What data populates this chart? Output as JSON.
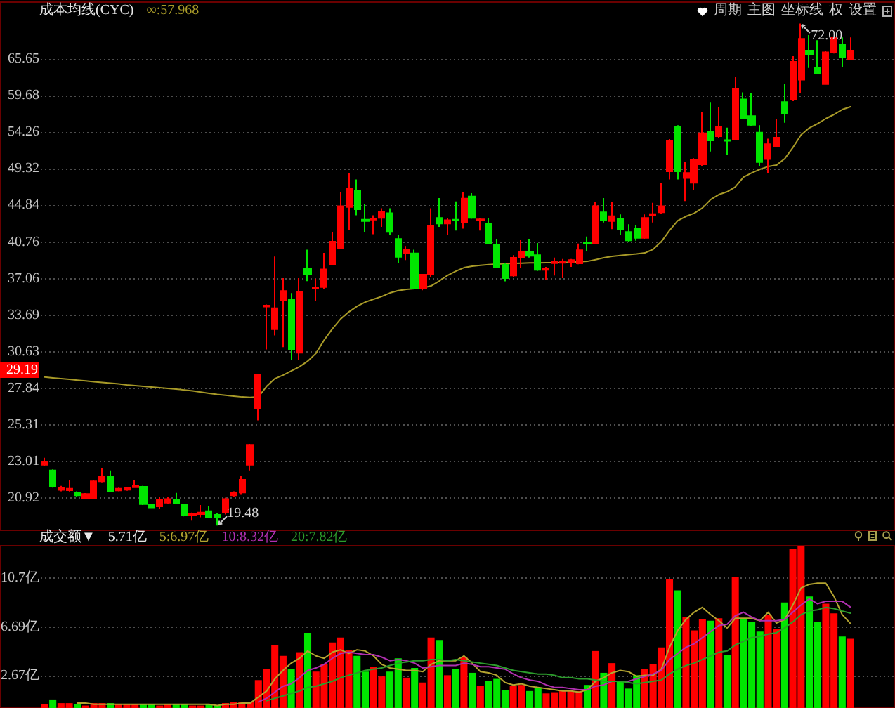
{
  "chart_data": [
    {
      "type": "candlestick",
      "legend_title": "成本均线(CYC)",
      "categories": [
        null,
        null,
        null,
        null,
        null,
        null,
        null,
        null,
        null,
        null,
        null,
        null,
        null,
        null,
        null,
        null,
        null,
        null,
        null,
        null,
        null,
        null,
        null,
        null,
        null,
        null,
        null,
        null,
        null,
        null,
        null,
        null,
        null,
        null,
        null,
        null,
        null,
        null,
        null,
        null,
        null,
        null,
        null,
        null,
        null,
        null,
        null,
        null,
        null,
        null,
        null,
        null,
        null,
        null,
        null,
        null,
        null,
        null,
        null,
        null,
        null,
        null,
        null,
        null,
        null,
        null,
        null,
        null,
        null,
        null,
        null,
        null,
        null,
        null,
        null,
        null,
        null,
        null,
        null,
        null,
        null,
        null,
        null,
        null,
        null,
        null,
        null,
        null,
        null,
        null,
        null,
        null,
        null,
        null,
        null,
        null,
        null,
        null,
        null
      ],
      "series": [
        {
          "ohlc": [
            [
              22.82,
              23.24,
              22.76,
              23.01
            ],
            [
              22.49,
              22.55,
              21.5,
              21.55
            ],
            [
              21.37,
              21.6,
              21.3,
              21.5
            ],
            [
              21.35,
              21.95,
              21.29,
              21.44
            ],
            [
              21.23,
              21.3,
              21.0,
              21.07
            ],
            [
              20.9,
              21.2,
              20.85,
              21.15
            ],
            [
              20.9,
              21.95,
              20.85,
              21.86
            ],
            [
              21.86,
              22.6,
              21.8,
              22.14
            ],
            [
              22.14,
              22.49,
              21.25,
              21.31
            ],
            [
              21.34,
              21.5,
              21.3,
              21.44
            ],
            [
              21.38,
              21.55,
              21.33,
              21.5
            ],
            [
              21.52,
              21.95,
              21.48,
              21.6
            ],
            [
              21.55,
              21.6,
              20.55,
              20.6
            ],
            [
              20.55,
              20.6,
              20.4,
              20.42
            ],
            [
              20.47,
              21.0,
              20.35,
              20.82
            ],
            [
              20.67,
              21.0,
              20.6,
              20.87
            ],
            [
              20.82,
              21.21,
              20.6,
              20.65
            ],
            [
              20.55,
              20.6,
              19.95,
              20.02
            ],
            [
              20.02,
              20.15,
              19.73,
              20.1
            ],
            [
              20.07,
              20.55,
              19.9,
              20.15
            ],
            [
              20.22,
              20.47,
              19.85,
              19.9
            ],
            [
              20.03,
              20.1,
              19.48,
              19.9
            ],
            [
              20.15,
              20.95,
              20.05,
              20.87
            ],
            [
              21.07,
              21.3,
              21.0,
              21.21
            ],
            [
              21.23,
              22.15,
              21.1,
              21.95
            ],
            [
              22.82,
              24.1,
              22.49,
              24.04
            ],
            [
              26.41,
              28.9,
              25.62,
              28.83
            ],
            [
              34.45,
              34.65,
              30.82,
              34.55
            ],
            [
              32.48,
              39.25,
              31.97,
              34.31
            ],
            [
              35.04,
              37.1,
              31.0,
              35.89
            ],
            [
              35.11,
              35.68,
              29.96,
              30.82
            ],
            [
              30.55,
              37.1,
              30.0,
              35.81
            ],
            [
              38.05,
              39.96,
              36.82,
              37.5
            ],
            [
              36.1,
              37.05,
              35.0,
              36.18
            ],
            [
              36.24,
              39.62,
              36.1,
              37.96
            ],
            [
              38.42,
              41.85,
              38.4,
              40.8
            ],
            [
              40.1,
              46.4,
              40.0,
              44.75
            ],
            [
              44.65,
              48.75,
              42.1,
              46.88
            ],
            [
              46.54,
              47.98,
              43.7,
              44.38
            ],
            [
              43.2,
              45.0,
              41.85,
              43.05
            ],
            [
              43.2,
              43.7,
              41.6,
              43.3
            ],
            [
              43.41,
              44.5,
              42.4,
              44.15
            ],
            [
              43.95,
              44.5,
              41.5,
              41.85
            ],
            [
              41.09,
              41.5,
              38.55,
              39.22
            ],
            [
              39.62,
              40.35,
              38.9,
              40.0
            ],
            [
              39.57,
              39.96,
              36.1,
              36.15
            ],
            [
              36.15,
              37.5,
              35.95,
              37.45
            ],
            [
              37.5,
              44.5,
              37.2,
              42.55
            ],
            [
              43.41,
              45.7,
              42.4,
              42.78
            ],
            [
              42.78,
              43.4,
              41.5,
              43.15
            ],
            [
              43.2,
              45.3,
              42.0,
              43.1
            ],
            [
              42.9,
              46.4,
              42.2,
              45.65
            ],
            [
              45.9,
              46.3,
              43.3,
              43.41
            ],
            [
              43.15,
              43.4,
              42.0,
              43.25
            ],
            [
              42.75,
              43.4,
              40.55,
              40.6
            ],
            [
              40.45,
              41.1,
              38.1,
              38.19
            ],
            [
              38.42,
              38.6,
              36.8,
              37.11
            ],
            [
              37.36,
              39.4,
              37.2,
              39.13
            ],
            [
              39.15,
              40.95,
              38.1,
              39.7
            ],
            [
              39.72,
              41.1,
              39.15,
              39.33
            ],
            [
              39.4,
              40.65,
              37.8,
              37.9
            ],
            [
              37.9,
              38.2,
              36.9,
              38.05
            ],
            [
              38.57,
              39.15,
              37.36,
              38.75
            ],
            [
              38.6,
              39.0,
              37.1,
              38.7
            ],
            [
              38.7,
              39.0,
              38.2,
              38.9
            ],
            [
              38.55,
              40.6,
              38.47,
              39.9
            ],
            [
              40.7,
              41.35,
              39.8,
              40.6
            ],
            [
              40.64,
              45.2,
              40.5,
              44.75
            ],
            [
              44.05,
              45.7,
              42.9,
              43.15
            ],
            [
              43.05,
              45.2,
              42.15,
              43.6
            ],
            [
              43.35,
              43.8,
              41.5,
              42.16
            ],
            [
              41.85,
              42.7,
              40.8,
              40.94
            ],
            [
              42.2,
              42.6,
              40.9,
              41.2
            ],
            [
              41.2,
              43.8,
              41.1,
              43.41
            ],
            [
              43.75,
              45.15,
              42.9,
              43.85
            ],
            [
              44.05,
              47.57,
              43.9,
              44.75
            ],
            [
              49.0,
              53.3,
              47.98,
              53.1
            ],
            [
              55.07,
              55.25,
              47.98,
              49.0
            ],
            [
              48.15,
              50.26,
              45.35,
              48.8
            ],
            [
              47.57,
              50.7,
              46.7,
              50.44
            ],
            [
              49.9,
              57.13,
              49.7,
              54.1
            ],
            [
              54.3,
              58.7,
              51.6,
              53.1
            ],
            [
              53.7,
              57.97,
              53.4,
              55.0
            ],
            [
              53.15,
              54.9,
              51.2,
              53.05
            ],
            [
              53.25,
              62.6,
              53.1,
              60.8
            ],
            [
              59.1,
              60.2,
              56.1,
              56.3
            ],
            [
              56.6,
              60.13,
              55.07,
              55.3
            ],
            [
              54.2,
              55.25,
              49.65,
              50.2
            ],
            [
              50.6,
              53.35,
              48.8,
              52.6
            ],
            [
              52.3,
              56.1,
              52.2,
              53.5
            ],
            [
              58.7,
              61.46,
              55.6,
              56.95
            ],
            [
              59.04,
              66.13,
              58.82,
              65.17
            ],
            [
              62.2,
              72.0,
              60.13,
              69.2
            ],
            [
              67.1,
              69.87,
              64.15,
              66.4
            ],
            [
              64.15,
              68.95,
              63.06,
              63.25
            ],
            [
              61.5,
              67.1,
              61.46,
              66.8
            ],
            [
              66.86,
              69.45,
              66.6,
              69.35
            ],
            [
              68.1,
              69.45,
              64.3,
              65.89
            ],
            [
              65.6,
              69.45,
              65.4,
              67.1
            ]
          ],
          "colors": [
            "#ff0000",
            "#00e600",
            "#ff0000",
            "#ff0000",
            "#00e600",
            "#ff0000",
            "#ff0000",
            "#ff0000",
            "#00e600",
            "#ff0000",
            "#ff0000",
            "#ff0000",
            "#00e600",
            "#00e600",
            "#ff0000",
            "#ff0000",
            "#00e600",
            "#00e600",
            "#ff0000",
            "#ff0000",
            "#00e600",
            "#00e600",
            "#ff0000",
            "#ff0000",
            "#ff0000",
            "#ff0000",
            "#ff0000",
            "#ff0000",
            "#ff0000",
            "#ff0000",
            "#00e600",
            "#ff0000",
            "#00e600",
            "#ff0000",
            "#ff0000",
            "#ff0000",
            "#ff0000",
            "#ff0000",
            "#00e600",
            "#00e600",
            "#ff0000",
            "#ff0000",
            "#00e600",
            "#00e600",
            "#ff0000",
            "#00e600",
            "#ff0000",
            "#ff0000",
            "#00e600",
            "#ff0000",
            "#00e600",
            "#ff0000",
            "#00e600",
            "#ff0000",
            "#00e600",
            "#00e600",
            "#00e600",
            "#ff0000",
            "#ff0000",
            "#00e600",
            "#00e600",
            "#ff0000",
            "#ff0000",
            "#ff0000",
            "#ff0000",
            "#ff0000",
            "#00e600",
            "#ff0000",
            "#00e600",
            "#ff0000",
            "#00e600",
            "#00e600",
            "#00e600",
            "#ff0000",
            "#ff0000",
            "#ff0000",
            "#ff0000",
            "#00e600",
            "#ff0000",
            "#ff0000",
            "#ff0000",
            "#00e600",
            "#ff0000",
            "#00e600",
            "#ff0000",
            "#00e600",
            "#00e600",
            "#00e600",
            "#ff0000",
            "#ff0000",
            "#00e600",
            "#ff0000",
            "#ff0000",
            "#00e600",
            "#00e600",
            "#ff0000",
            "#ff0000",
            "#00e600",
            "#ff0000"
          ],
          "value_labels": [
            null,
            null,
            null,
            null,
            null,
            null,
            null,
            null,
            null,
            null,
            null,
            null,
            null,
            null,
            null,
            null,
            null,
            null,
            null,
            null,
            null,
            "19.48",
            null,
            null,
            null,
            null,
            null,
            null,
            null,
            null,
            null,
            null,
            null,
            null,
            null,
            null,
            null,
            null,
            null,
            null,
            null,
            null,
            null,
            null,
            null,
            null,
            null,
            null,
            null,
            null,
            null,
            null,
            null,
            null,
            null,
            null,
            null,
            null,
            null,
            null,
            null,
            null,
            null,
            null,
            null,
            null,
            null,
            null,
            null,
            null,
            null,
            null,
            null,
            null,
            null,
            null,
            null,
            null,
            null,
            null,
            null,
            null,
            null,
            null,
            null,
            null,
            null,
            null,
            null,
            null,
            null,
            null,
            "72.00",
            null,
            null,
            null,
            null,
            null,
            null
          ]
        },
        {
          "type": "line",
          "name": "∞:57.968",
          "color": "#a89a28",
          "values": [
            28.68,
            28.62,
            28.56,
            28.51,
            28.45,
            28.39,
            28.33,
            28.28,
            28.22,
            28.17,
            28.1,
            28.05,
            27.99,
            27.94,
            27.89,
            27.84,
            27.79,
            27.73,
            27.66,
            27.57,
            27.49,
            27.41,
            27.35,
            27.29,
            27.23,
            27.2,
            27.23,
            27.99,
            28.56,
            28.82,
            29.14,
            29.46,
            29.89,
            30.5,
            31.58,
            32.52,
            33.36,
            33.98,
            34.48,
            34.86,
            35.12,
            35.37,
            35.7,
            35.92,
            36.03,
            36.09,
            36.16,
            36.36,
            36.83,
            37.37,
            37.78,
            38.13,
            38.27,
            38.37,
            38.44,
            38.48,
            38.52,
            38.55,
            38.57,
            38.6,
            38.6,
            38.62,
            38.62,
            38.65,
            38.68,
            38.72,
            38.76,
            38.93,
            39.12,
            39.26,
            39.36,
            39.45,
            39.52,
            39.62,
            39.99,
            40.8,
            42.01,
            43.1,
            43.58,
            43.93,
            44.54,
            45.53,
            46.12,
            46.46,
            47.06,
            48.28,
            48.81,
            49.26,
            49.62,
            49.8,
            50.63,
            52.13,
            53.88,
            54.87,
            55.48,
            56.2,
            56.82,
            57.55,
            57.968
          ]
        }
      ],
      "log": true,
      "ylim": [
        19.24,
        76.14
      ],
      "yticks": [
        20.92,
        23.01,
        25.31,
        27.84,
        30.63,
        33.69,
        37.06,
        40.76,
        44.84,
        49.32,
        54.26,
        59.68,
        65.65
      ],
      "grid": "y",
      "legend": "top left",
      "tick_labels": "y",
      "annotations": [
        {
          "text": "29.19",
          "y": 29.19
        },
        "周期",
        "主图",
        "坐标线",
        "权",
        "设置"
      ]
    },
    {
      "type": "bar",
      "title": "成交额▼",
      "subtitle": "5.71亿",
      "categories": [
        null,
        null,
        null,
        null,
        null,
        null,
        null,
        null,
        null,
        null,
        null,
        null,
        null,
        null,
        null,
        null,
        null,
        null,
        null,
        null,
        null,
        null,
        null,
        null,
        null,
        null,
        null,
        null,
        null,
        null,
        null,
        null,
        null,
        null,
        null,
        null,
        null,
        null,
        null,
        null,
        null,
        null,
        null,
        null,
        null,
        null,
        null,
        null,
        null,
        null,
        null,
        null,
        null,
        null,
        null,
        null,
        null,
        null,
        null,
        null,
        null,
        null,
        null,
        null,
        null,
        null,
        null,
        null,
        null,
        null,
        null,
        null,
        null,
        null,
        null,
        null,
        null,
        null,
        null,
        null,
        null,
        null,
        null,
        null,
        null,
        null,
        null,
        null,
        null,
        null,
        null,
        null,
        null,
        null,
        null,
        null,
        null,
        null,
        null
      ],
      "series": [
        {
          "values": [
            0.3,
            0.7,
            0.4,
            0.4,
            0.3,
            0.2,
            0.4,
            0.4,
            0.4,
            0.3,
            0.3,
            0.3,
            0.3,
            0.3,
            0.2,
            0.3,
            0.3,
            0.3,
            0.2,
            0.2,
            0.3,
            0.2,
            0.4,
            0.5,
            0.5,
            0.5,
            2.3,
            3.2,
            5.2,
            4.3,
            3.2,
            4.6,
            6.2,
            3.0,
            3.6,
            5.4,
            5.8,
            4.8,
            4.3,
            3.0,
            3.4,
            2.6,
            3.0,
            4.1,
            2.5,
            3.3,
            2.1,
            5.8,
            5.6,
            2.7,
            3.2,
            4.2,
            2.9,
            1.8,
            2.2,
            2.4,
            1.5,
            1.8,
            1.9,
            1.4,
            1.7,
            1.2,
            1.3,
            1.4,
            1.4,
            1.4,
            1.9,
            4.7,
            2.9,
            3.7,
            2.2,
            1.6,
            2.7,
            3.2,
            3.6,
            5.0,
            10.6,
            9.7,
            7.5,
            6.4,
            7.3,
            7.2,
            7.4,
            4.4,
            10.8,
            7.4,
            7.1,
            6.3,
            7.7,
            6.5,
            8.7,
            13.1,
            13.38,
            9.2,
            7.1,
            8.6,
            7.8,
            5.9,
            5.71
          ],
          "colors": [
            "#ff0000",
            "#00e600",
            "#ff0000",
            "#ff0000",
            "#00e600",
            "#ff0000",
            "#ff0000",
            "#ff0000",
            "#00e600",
            "#ff0000",
            "#ff0000",
            "#ff0000",
            "#00e600",
            "#00e600",
            "#ff0000",
            "#ff0000",
            "#00e600",
            "#00e600",
            "#ff0000",
            "#ff0000",
            "#00e600",
            "#00e600",
            "#ff0000",
            "#ff0000",
            "#ff0000",
            "#ff0000",
            "#ff0000",
            "#ff0000",
            "#ff0000",
            "#ff0000",
            "#00e600",
            "#ff0000",
            "#00e600",
            "#ff0000",
            "#ff0000",
            "#ff0000",
            "#ff0000",
            "#ff0000",
            "#00e600",
            "#00e600",
            "#ff0000",
            "#ff0000",
            "#00e600",
            "#00e600",
            "#ff0000",
            "#00e600",
            "#ff0000",
            "#ff0000",
            "#00e600",
            "#ff0000",
            "#00e600",
            "#ff0000",
            "#00e600",
            "#ff0000",
            "#00e600",
            "#00e600",
            "#00e600",
            "#ff0000",
            "#ff0000",
            "#00e600",
            "#00e600",
            "#ff0000",
            "#ff0000",
            "#ff0000",
            "#ff0000",
            "#ff0000",
            "#00e600",
            "#ff0000",
            "#00e600",
            "#ff0000",
            "#00e600",
            "#00e600",
            "#00e600",
            "#ff0000",
            "#ff0000",
            "#ff0000",
            "#ff0000",
            "#00e600",
            "#ff0000",
            "#ff0000",
            "#ff0000",
            "#00e600",
            "#ff0000",
            "#00e600",
            "#ff0000",
            "#00e600",
            "#00e600",
            "#00e600",
            "#ff0000",
            "#ff0000",
            "#00e600",
            "#ff0000",
            "#ff0000",
            "#00e600",
            "#00e600",
            "#ff0000",
            "#ff0000",
            "#00e600",
            "#ff0000"
          ]
        },
        {
          "type": "line",
          "name": "5:6.97亿",
          "color": "#b4a430",
          "values": [
            null,
            null,
            null,
            null,
            0.4,
            0.4,
            0.3,
            0.3,
            0.3,
            0.3,
            0.3,
            0.3,
            0.3,
            0.3,
            0.3,
            0.3,
            0.3,
            0.3,
            0.3,
            0.3,
            0.3,
            0.2,
            0.3,
            0.3,
            0.4,
            0.4,
            0.9,
            1.4,
            2.4,
            3.1,
            3.7,
            4.1,
            4.7,
            4.3,
            4.1,
            4.6,
            4.8,
            4.5,
            4.8,
            4.7,
            4.3,
            3.6,
            3.3,
            3.2,
            3.1,
            3.1,
            3.0,
            3.6,
            3.9,
            3.9,
            3.9,
            4.3,
            3.7,
            3.0,
            2.9,
            2.7,
            2.1,
            1.9,
            2.0,
            1.8,
            1.7,
            1.6,
            1.5,
            1.4,
            1.4,
            1.3,
            1.5,
            2.2,
            2.5,
            2.9,
            3.1,
            3.0,
            2.6,
            2.7,
            2.7,
            3.2,
            5.0,
            6.4,
            7.3,
            7.9,
            8.3,
            7.7,
            7.2,
            6.6,
            7.4,
            7.4,
            7.4,
            7.2,
            7.9,
            7.0,
            7.3,
            8.5,
            9.9,
            10.2,
            10.3,
            10.3,
            9.2,
            7.7,
            6.97
          ]
        },
        {
          "type": "line",
          "name": "10:8.32亿",
          "color": "#b030b0",
          "values": [
            null,
            null,
            null,
            null,
            null,
            null,
            null,
            null,
            null,
            null,
            null,
            null,
            null,
            null,
            null,
            null,
            null,
            null,
            null,
            null,
            null,
            null,
            null,
            null,
            null,
            null,
            0.5,
            0.8,
            1.3,
            1.8,
            2.0,
            2.5,
            3.1,
            3.3,
            3.6,
            4.1,
            4.5,
            4.6,
            4.5,
            4.4,
            4.4,
            4.2,
            3.9,
            4.0,
            3.9,
            3.7,
            3.3,
            3.4,
            3.5,
            3.5,
            3.5,
            3.7,
            3.6,
            3.4,
            3.4,
            3.3,
            3.2,
            2.8,
            2.5,
            2.3,
            2.2,
            1.9,
            1.7,
            1.7,
            1.6,
            1.5,
            1.5,
            1.8,
            1.9,
            2.2,
            2.2,
            2.2,
            2.4,
            2.6,
            2.8,
            3.1,
            4.0,
            4.5,
            5.0,
            5.3,
            5.8,
            6.3,
            6.8,
            6.9,
            7.6,
            7.9,
            7.5,
            7.2,
            7.2,
            7.2,
            7.3,
            7.9,
            8.5,
            9.0,
            8.6,
            8.8,
            8.8,
            8.8,
            8.32
          ]
        },
        {
          "type": "line",
          "name": "20:7.82亿",
          "color": "#2c9c2c",
          "values": [
            null,
            null,
            null,
            null,
            null,
            null,
            null,
            null,
            null,
            null,
            null,
            null,
            null,
            null,
            null,
            null,
            null,
            null,
            null,
            null,
            null,
            null,
            null,
            null,
            null,
            null,
            null,
            0.6,
            0.8,
            1.0,
            1.2,
            1.4,
            1.7,
            1.8,
            2.0,
            2.2,
            2.5,
            2.7,
            2.9,
            3.1,
            3.2,
            3.3,
            3.5,
            3.7,
            3.8,
            3.9,
            3.9,
            4.0,
            4.0,
            3.9,
            4.0,
            3.9,
            3.8,
            3.7,
            3.6,
            3.5,
            3.3,
            3.1,
            3.0,
            2.9,
            2.8,
            2.8,
            2.7,
            2.5,
            2.5,
            2.4,
            2.4,
            2.3,
            2.2,
            2.2,
            2.2,
            2.1,
            2.0,
            2.1,
            2.2,
            2.3,
            2.8,
            3.2,
            3.5,
            3.7,
            4.0,
            4.3,
            4.6,
            4.7,
            5.2,
            5.5,
            5.8,
            5.9,
            6.1,
            6.2,
            6.6,
            7.1,
            7.7,
            8.0,
            8.1,
            8.3,
            8.2,
            8.0,
            7.82
          ]
        }
      ],
      "ylim": [
        0,
        13.38
      ],
      "yticks": [
        {
          "value": 2.67,
          "label": "2.67亿"
        },
        {
          "value": 6.69,
          "label": "6.69亿"
        },
        {
          "value": 10.7,
          "label": "10.7亿"
        }
      ],
      "grid": "y",
      "legend": "top left",
      "tick_labels": "y"
    }
  ]
}
